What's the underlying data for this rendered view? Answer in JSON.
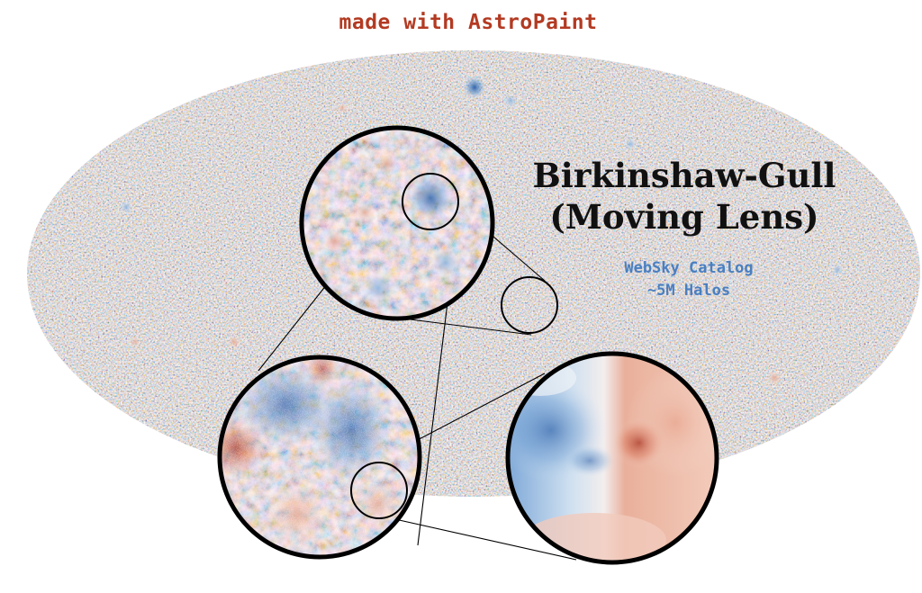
{
  "header": {
    "credit": "made with AstroPaint",
    "credit_color": "#b33a22"
  },
  "title": {
    "line1": "Birkinshaw-Gull",
    "line2": "(Moving Lens)"
  },
  "subtitle": {
    "line1": "WebSky Catalog",
    "line2": "~5M Halos",
    "color": "#4a7fc1"
  },
  "colors": {
    "map_red": "#c0392b",
    "map_blue": "#2f6db3",
    "map_white": "#f7f3f0",
    "outline": "#000000"
  },
  "figure": {
    "map": "full-sky-mollweide-map",
    "zoom_levels": 3
  }
}
